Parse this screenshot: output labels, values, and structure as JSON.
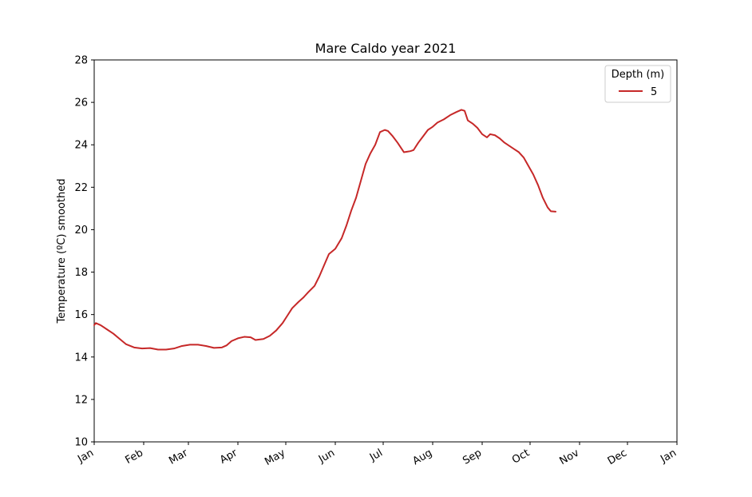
{
  "chart_data": {
    "type": "line",
    "title": "Mare Caldo year 2021",
    "xlabel": "",
    "ylabel": "Temperature (ºC) smoothed",
    "x_ticks": [
      "Jan",
      "Feb",
      "Mar",
      "Apr",
      "May",
      "Jun",
      "Jul",
      "Aug",
      "Sep",
      "Oct",
      "Nov",
      "Dec",
      "Jan"
    ],
    "y_ticks": [
      "10",
      "12",
      "14",
      "16",
      "18",
      "20",
      "22",
      "24",
      "26",
      "28"
    ],
    "xlim": [
      "2021-01-01",
      "2022-01-01"
    ],
    "ylim": [
      10,
      28
    ],
    "grid": false,
    "legend": {
      "title": "Depth (m)",
      "placement": "top-right"
    },
    "series": [
      {
        "name": "5",
        "color": "#c62828",
        "points": [
          [
            "2021-01-01",
            15.5
          ],
          [
            "2021-01-02",
            15.6
          ],
          [
            "2021-01-05",
            15.5
          ],
          [
            "2021-01-09",
            15.3
          ],
          [
            "2021-01-13",
            15.1
          ],
          [
            "2021-01-17",
            14.85
          ],
          [
            "2021-01-21",
            14.6
          ],
          [
            "2021-01-26",
            14.45
          ],
          [
            "2021-01-31",
            14.4
          ],
          [
            "2021-02-05",
            14.42
          ],
          [
            "2021-02-10",
            14.35
          ],
          [
            "2021-02-15",
            14.35
          ],
          [
            "2021-02-20",
            14.4
          ],
          [
            "2021-02-25",
            14.52
          ],
          [
            "2021-03-02",
            14.58
          ],
          [
            "2021-03-07",
            14.58
          ],
          [
            "2021-03-12",
            14.52
          ],
          [
            "2021-03-17",
            14.43
          ],
          [
            "2021-03-22",
            14.45
          ],
          [
            "2021-03-25",
            14.55
          ],
          [
            "2021-03-28",
            14.75
          ],
          [
            "2021-04-01",
            14.88
          ],
          [
            "2021-04-05",
            14.95
          ],
          [
            "2021-04-09",
            14.93
          ],
          [
            "2021-04-12",
            14.8
          ],
          [
            "2021-04-17",
            14.85
          ],
          [
            "2021-04-21",
            15.0
          ],
          [
            "2021-04-25",
            15.25
          ],
          [
            "2021-04-29",
            15.6
          ],
          [
            "2021-05-02",
            15.95
          ],
          [
            "2021-05-05",
            16.3
          ],
          [
            "2021-05-09",
            16.6
          ],
          [
            "2021-05-12",
            16.8
          ],
          [
            "2021-05-15",
            17.05
          ],
          [
            "2021-05-19",
            17.35
          ],
          [
            "2021-05-22",
            17.8
          ],
          [
            "2021-05-26",
            18.5
          ],
          [
            "2021-05-28",
            18.85
          ],
          [
            "2021-06-01",
            19.1
          ],
          [
            "2021-06-05",
            19.6
          ],
          [
            "2021-06-08",
            20.2
          ],
          [
            "2021-06-11",
            20.9
          ],
          [
            "2021-06-14",
            21.5
          ],
          [
            "2021-06-17",
            22.3
          ],
          [
            "2021-06-20",
            23.1
          ],
          [
            "2021-06-23",
            23.6
          ],
          [
            "2021-06-26",
            24.0
          ],
          [
            "2021-06-29",
            24.6
          ],
          [
            "2021-07-02",
            24.7
          ],
          [
            "2021-07-04",
            24.65
          ],
          [
            "2021-07-07",
            24.4
          ],
          [
            "2021-07-10",
            24.1
          ],
          [
            "2021-07-14",
            23.65
          ],
          [
            "2021-07-18",
            23.7
          ],
          [
            "2021-07-20",
            23.75
          ],
          [
            "2021-07-23",
            24.1
          ],
          [
            "2021-07-26",
            24.4
          ],
          [
            "2021-07-29",
            24.7
          ],
          [
            "2021-08-01",
            24.85
          ],
          [
            "2021-08-04",
            25.05
          ],
          [
            "2021-08-08",
            25.2
          ],
          [
            "2021-08-12",
            25.4
          ],
          [
            "2021-08-16",
            25.55
          ],
          [
            "2021-08-19",
            25.65
          ],
          [
            "2021-08-21",
            25.6
          ],
          [
            "2021-08-23",
            25.15
          ],
          [
            "2021-08-26",
            25.0
          ],
          [
            "2021-08-29",
            24.8
          ],
          [
            "2021-09-01",
            24.5
          ],
          [
            "2021-09-04",
            24.35
          ],
          [
            "2021-09-06",
            24.5
          ],
          [
            "2021-09-09",
            24.45
          ],
          [
            "2021-09-12",
            24.3
          ],
          [
            "2021-09-15",
            24.1
          ],
          [
            "2021-09-18",
            23.95
          ],
          [
            "2021-09-21",
            23.8
          ],
          [
            "2021-09-24",
            23.65
          ],
          [
            "2021-09-27",
            23.4
          ],
          [
            "2021-09-30",
            23.0
          ],
          [
            "2021-10-03",
            22.6
          ],
          [
            "2021-10-06",
            22.1
          ],
          [
            "2021-10-09",
            21.5
          ],
          [
            "2021-10-12",
            21.05
          ],
          [
            "2021-10-14",
            20.87
          ],
          [
            "2021-10-17",
            20.85
          ]
        ]
      }
    ]
  }
}
